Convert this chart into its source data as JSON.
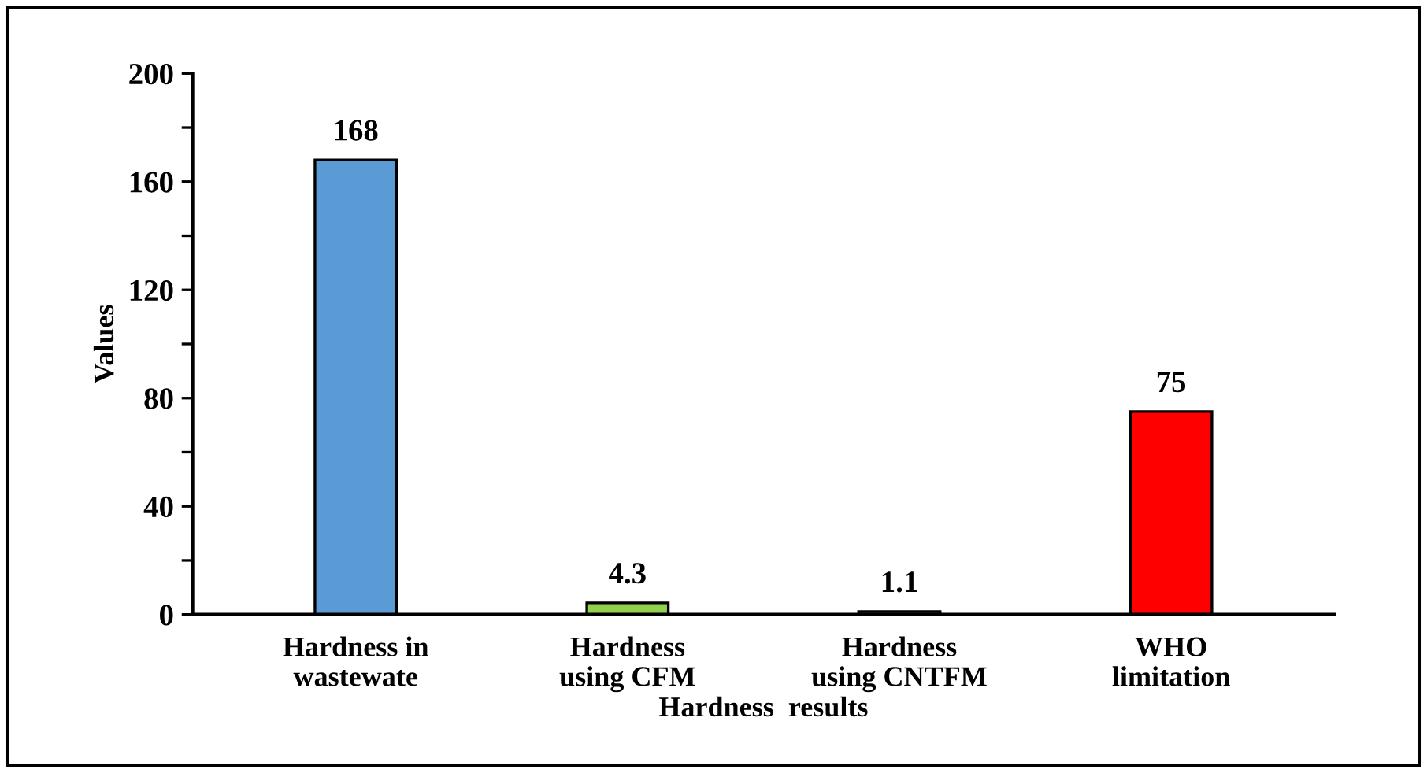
{
  "chart_data": {
    "type": "bar",
    "xlabel": "Hardness  results",
    "ylabel": "Values",
    "categories": [
      "Hardness in\nwastewate",
      "Hardness\nusing CFM",
      "Hardness\nusing CNTFM",
      "WHO\nlimitation"
    ],
    "values": [
      168,
      4.3,
      1.1,
      75
    ],
    "colors": [
      "#5b9bd5",
      "#92d050",
      "#404040",
      "#ff0000"
    ],
    "ylim": [
      0,
      200
    ],
    "yticks": [
      0,
      {
        "value": 20,
        "label": null
      },
      40,
      {
        "value": 60,
        "label": null
      },
      80,
      {
        "value": 100,
        "label": null
      },
      120,
      {
        "value": 140,
        "label": null
      },
      160,
      {
        "value": 180,
        "label": null
      },
      200
    ],
    "data_labels": true,
    "grid": false,
    "legend": false
  }
}
